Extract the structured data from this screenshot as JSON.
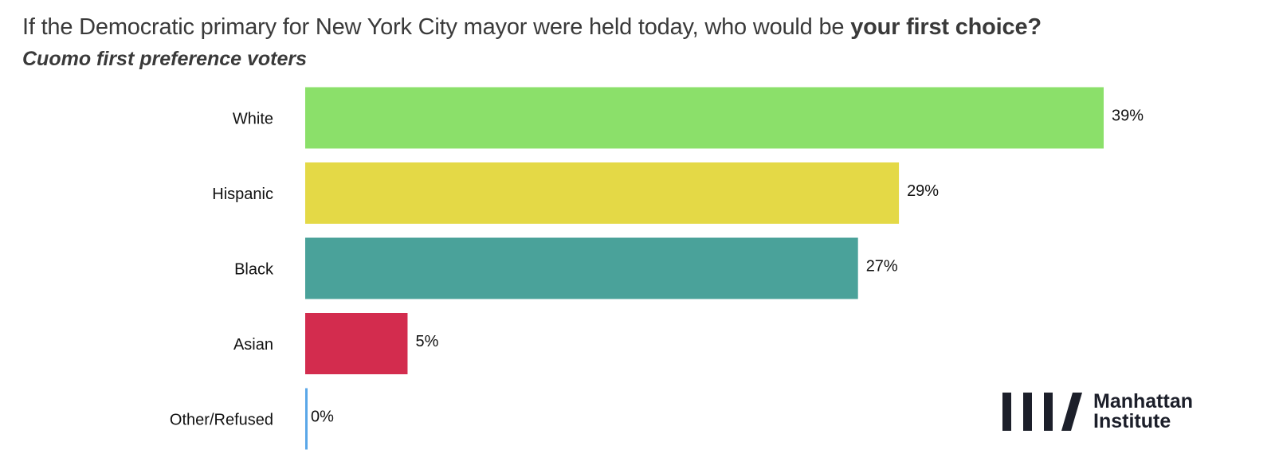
{
  "header": {
    "title_regular": "If the Democratic primary for New York City mayor were held today, who would be ",
    "title_bold": "your first choice?",
    "subtitle": "Cuomo first preference voters"
  },
  "logo": {
    "line1": "Manhattan",
    "line2": "Institute",
    "icon": "manhattan-institute-bars-logo"
  },
  "chart_data": {
    "type": "bar",
    "orientation": "horizontal",
    "categories": [
      "White",
      "Hispanic",
      "Black",
      "Asian",
      "Other/Refused"
    ],
    "values": [
      39,
      29,
      27,
      5,
      0
    ],
    "value_labels": [
      "39%",
      "29%",
      "27%",
      "5%",
      "0%"
    ],
    "colors": [
      "#8be06a",
      "#e4d946",
      "#4aa29a",
      "#d32c4e",
      "#5aa7e8"
    ],
    "xlim": [
      0,
      39
    ],
    "grid": false,
    "legend": "none",
    "axis_labels_visible": false
  }
}
